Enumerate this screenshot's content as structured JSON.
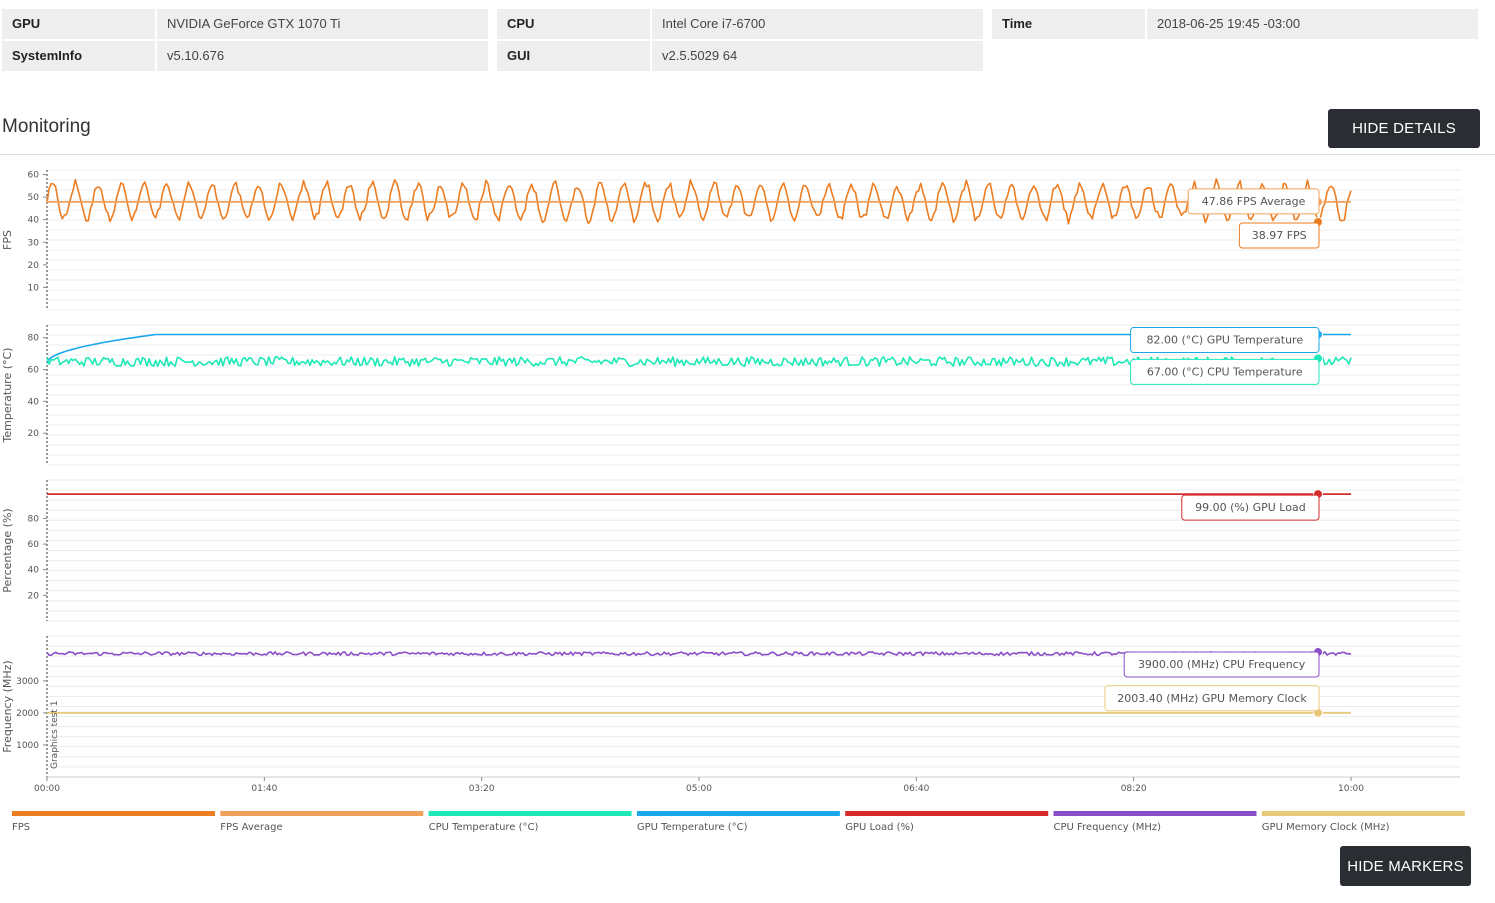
{
  "info": {
    "rows": [
      [
        {
          "key": "GPU",
          "value": "NVIDIA GeForce GTX 1070 Ti"
        },
        {
          "key": "CPU",
          "value": "Intel Core i7-6700"
        },
        {
          "key": "Time",
          "value": "2018-06-25 19:45 -03:00"
        }
      ],
      [
        {
          "key": "SystemInfo",
          "value": "v5.10.676"
        },
        {
          "key": "GUI",
          "value": "v2.5.5029 64"
        }
      ]
    ]
  },
  "section": {
    "title": "Monitoring"
  },
  "buttons": {
    "hide_details": "HIDE DETAILS",
    "hide_markers": "HIDE MARKERS"
  },
  "chart_data": {
    "type": "line",
    "x_unit": "mm:ss",
    "x_ticks": [
      "00:00",
      "01:40",
      "03:20",
      "05:00",
      "06:40",
      "08:20",
      "10:00"
    ],
    "x_range_seconds": [
      0,
      600
    ],
    "marker": {
      "label": "Graphics test 1",
      "x": "00:00"
    },
    "panels": [
      {
        "ylabel": "FPS",
        "yticks": [
          10,
          20,
          30,
          40,
          50,
          60
        ],
        "ylim": [
          0,
          62
        ],
        "series": [
          {
            "name": "FPS",
            "color": "#ed7d22",
            "pattern": "oscillating",
            "mean": 48,
            "amp": 8,
            "period_seconds": 10.5,
            "end_value": 38.97
          },
          {
            "name": "FPS Average",
            "color": "#f0a05a",
            "pattern": "flat",
            "value": 47.86
          }
        ],
        "tooltips": [
          {
            "text": "47.86 FPS Average",
            "series": "FPS Average"
          },
          {
            "text": "38.97 FPS",
            "series": "FPS"
          }
        ]
      },
      {
        "ylabel": "Temperature (°C)",
        "yticks": [
          20,
          40,
          60,
          80
        ],
        "ylim": [
          0,
          88
        ],
        "series": [
          {
            "name": "GPU Temperature (°C)",
            "color": "#1aa7ec",
            "pattern": "warmup",
            "start": 64,
            "value": 82,
            "warmup_seconds": 50
          },
          {
            "name": "CPU Temperature (°C)",
            "color": "#1de9b6",
            "pattern": "noisy",
            "mean": 65,
            "amp": 3,
            "end_value": 67
          }
        ],
        "tooltips": [
          {
            "text": "82.00 (°C) GPU Temperature",
            "series": "GPU Temperature (°C)"
          },
          {
            "text": "67.00 (°C) CPU Temperature",
            "series": "CPU Temperature (°C)"
          }
        ]
      },
      {
        "ylabel": "Percentage (%)",
        "yticks": [
          20,
          40,
          60,
          80
        ],
        "ylim": [
          0,
          110
        ],
        "series": [
          {
            "name": "GPU Load (%)",
            "color": "#d62c2c",
            "pattern": "flat",
            "value": 99
          }
        ],
        "tooltips": [
          {
            "text": "99.00 (%) GPU Load",
            "series": "GPU Load (%)"
          }
        ]
      },
      {
        "ylabel": "Frequency (MHz)",
        "yticks": [
          1000,
          2000,
          3000
        ],
        "ylim": [
          0,
          4400
        ],
        "series": [
          {
            "name": "CPU Frequency (MHz)",
            "color": "#8a4fc7",
            "pattern": "noisy",
            "mean": 3850,
            "amp": 55,
            "end_value": 3900
          },
          {
            "name": "GPU Memory Clock (MHz)",
            "color": "#e8c97a",
            "pattern": "flat",
            "value": 2003.4
          }
        ],
        "tooltips": [
          {
            "text": "3900.00 (MHz) CPU Frequency",
            "series": "CPU Frequency (MHz)"
          },
          {
            "text": "2003.40 (MHz) GPU Memory Clock",
            "series": "GPU Memory Clock (MHz)"
          }
        ]
      }
    ],
    "legend": [
      {
        "name": "FPS",
        "color": "#ed7d22"
      },
      {
        "name": "FPS Average",
        "color": "#f0a05a"
      },
      {
        "name": "CPU Temperature (°C)",
        "color": "#1de9b6"
      },
      {
        "name": "GPU Temperature (°C)",
        "color": "#1aa7ec"
      },
      {
        "name": "GPU Load (%)",
        "color": "#d62c2c"
      },
      {
        "name": "CPU Frequency (MHz)",
        "color": "#8a4fc7"
      },
      {
        "name": "GPU Memory Clock (MHz)",
        "color": "#e8c97a"
      }
    ],
    "legend_placement": "bottom",
    "grid": true
  }
}
